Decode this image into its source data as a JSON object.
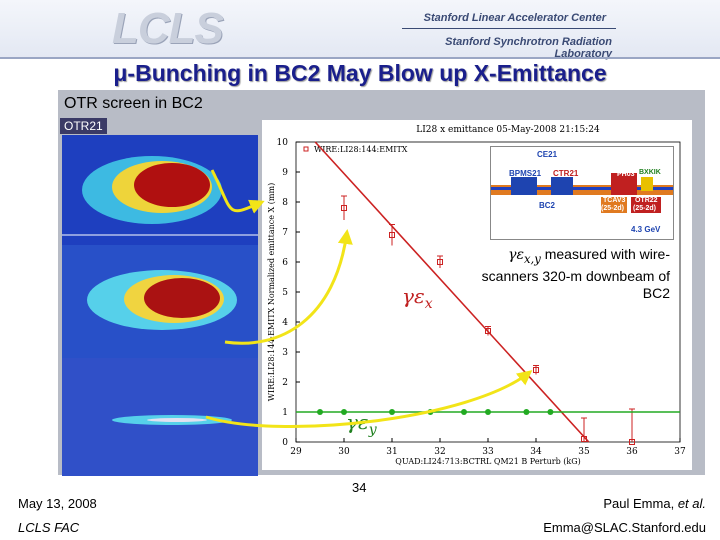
{
  "header": {
    "logo_text": "LCLS",
    "org_line1": "Stanford Linear Accelerator Center",
    "org_line2": "Stanford Synchrotron Radiation Laboratory"
  },
  "slide": {
    "title": "μ-Bunching in BC2 May Blow up X-Emittance",
    "subtitle": "OTR screen in BC2",
    "otr_label": "OTR21",
    "callout_text": "measured with wire-scanners 320-m downbeam of BC2",
    "callout_symbol": "γε",
    "callout_sub": "x,y",
    "ex_label": "γε",
    "ex_sub": "x",
    "ey_label": "γε",
    "ey_sub": "y"
  },
  "inset": {
    "labels": [
      "CE21",
      "BPMS21",
      "CTR21",
      "PH03",
      "BXKIK",
      "BC2",
      "TCAV3",
      "OTR22",
      "(25-2d)",
      "(25-2d)",
      "4.3 GeV"
    ]
  },
  "footer": {
    "date": "May 13, 2008",
    "meeting": "LCLS FAC",
    "page": "34",
    "author_name": "Paul Emma,",
    "author_etal": "et al.",
    "email": "Emma@SLAC.Stanford.edu"
  },
  "chart_data": {
    "type": "scatter",
    "title": "LI28 x emittance 05-May-2008 21:15:24",
    "xlabel": "QUAD:LI24:713:BCTRL QM21 B Perturb (kG)",
    "ylabel": "WIRE:LI28:144:EMITX Normalized emittance X (mm)",
    "legend_label": "WIRE:LI28:144:EMITX",
    "xlim": [
      29,
      37
    ],
    "ylim": [
      0,
      10
    ],
    "x_ticks": [
      29,
      30,
      31,
      32,
      33,
      34,
      35,
      36,
      37
    ],
    "y_ticks": [
      0,
      1,
      2,
      3,
      4,
      5,
      6,
      7,
      8,
      9,
      10
    ],
    "series": [
      {
        "name": "",
        "color": "#cc2222",
        "points": [
          {
            "x": 30.0,
            "y": 7.8,
            "err": 0.4
          },
          {
            "x": 31.0,
            "y": 6.9,
            "err": 0.35
          },
          {
            "x": 32.0,
            "y": 6.0,
            "err": 0.2
          },
          {
            "x": 33.0,
            "y": 3.7,
            "err": 0.15
          },
          {
            "x": 34.0,
            "y": 2.4,
            "err": 0.15
          },
          {
            "x": 35.0,
            "y": 0.1,
            "err": 0.7
          },
          {
            "x": 36.0,
            "y": 0.0,
            "err": 1.1
          }
        ],
        "fit": [
          [
            29.4,
            10.0
          ],
          [
            35.1,
            0.0
          ]
        ]
      },
      {
        "name": "",
        "color": "#22aa22",
        "points": [
          {
            "x": 29.5,
            "y": 1.0
          },
          {
            "x": 30.0,
            "y": 1.0
          },
          {
            "x": 31.0,
            "y": 1.0
          },
          {
            "x": 31.8,
            "y": 1.0
          },
          {
            "x": 32.5,
            "y": 1.0
          },
          {
            "x": 33.0,
            "y": 1.0
          },
          {
            "x": 33.8,
            "y": 1.0
          },
          {
            "x": 34.3,
            "y": 1.0
          }
        ],
        "fit": [
          [
            29.0,
            1.0
          ],
          [
            37.0,
            1.0
          ]
        ]
      }
    ]
  }
}
